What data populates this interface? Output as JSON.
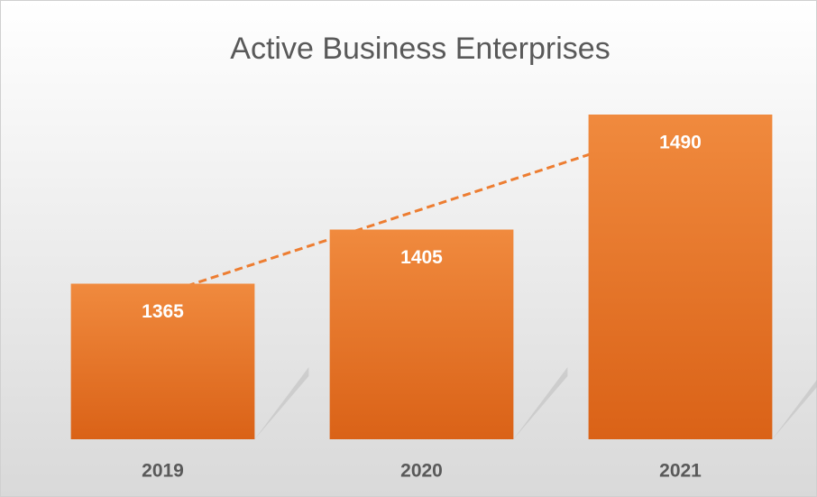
{
  "chart_data": {
    "type": "bar",
    "title": "Active Business Enterprises",
    "categories": [
      "2019",
      "2020",
      "2021"
    ],
    "values": [
      1365,
      1405,
      1490
    ],
    "color": "#ed7d31",
    "ylim": [
      1250,
      1500
    ],
    "trendline": true
  }
}
